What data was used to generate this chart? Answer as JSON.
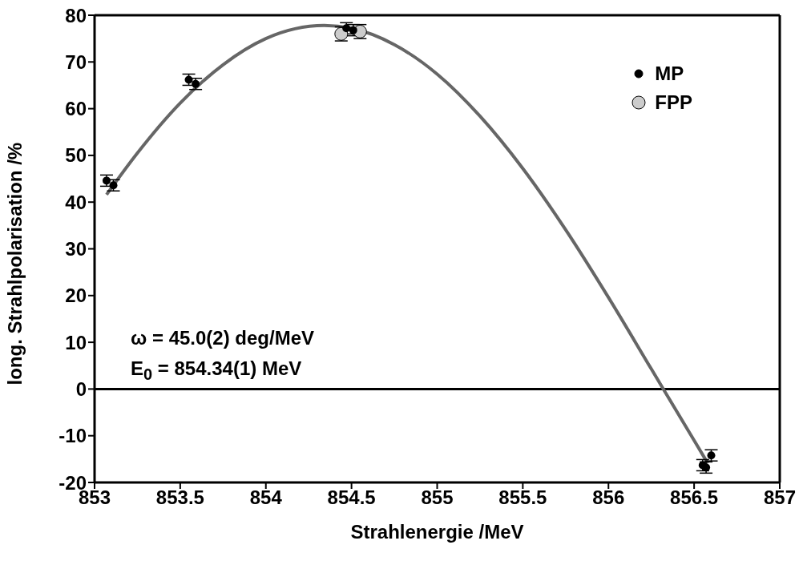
{
  "chart_data": {
    "type": "scatter",
    "xlabel": "Strahlenergie /MeV",
    "ylabel": "long. Strahlpolarisation /%",
    "xlim": [
      853,
      857
    ],
    "xticks": [
      853,
      853.5,
      854,
      854.5,
      855,
      855.5,
      856,
      856.5,
      857
    ],
    "ylim": [
      -20,
      80
    ],
    "yticks": [
      -20,
      -10,
      0,
      10,
      20,
      30,
      40,
      50,
      60,
      70,
      80
    ],
    "legend": "top right",
    "marker": "circle",
    "series": [
      {
        "type": "line",
        "color": "#666666",
        "marker": "none",
        "x": [
          853.07,
          853.25,
          853.5,
          853.75,
          854,
          854.34,
          854.5,
          854.75,
          855,
          855.25,
          855.5,
          855.75,
          856,
          856.25,
          856.5,
          856.58
        ],
        "values": [
          41.6,
          50.5,
          61.2,
          69.4,
          75.0,
          77.8,
          77.2,
          73.7,
          67.4,
          58.4,
          47.2,
          34.1,
          19.6,
          4.3,
          -11.0,
          -15.9
        ]
      },
      {
        "name": "FPP",
        "color": "#cccccc",
        "x": [
          854.44,
          854.55
        ],
        "values": [
          76.0,
          76.5
        ],
        "errors": [
          1.5,
          1.5
        ]
      },
      {
        "name": "MP",
        "color": "#000000",
        "x": [
          853.07,
          853.11,
          853.55,
          853.59,
          854.47,
          854.51,
          856.55,
          856.57,
          856.6
        ],
        "values": [
          44.6,
          43.6,
          66.2,
          65.3,
          77.2,
          76.8,
          -16.3,
          -16.8,
          -14.2
        ],
        "errors": [
          1.2,
          1.2,
          1.2,
          1.2,
          1.2,
          1.2,
          1.2,
          1.2,
          1.2
        ]
      }
    ],
    "ref_lines": [
      {
        "axis": "y",
        "value": 0,
        "color": "#000000"
      }
    ],
    "annotations": [
      "ω  = 45.0(2) deg/MeV",
      "E$_{0}$ = 854.34(1) MeV"
    ]
  }
}
